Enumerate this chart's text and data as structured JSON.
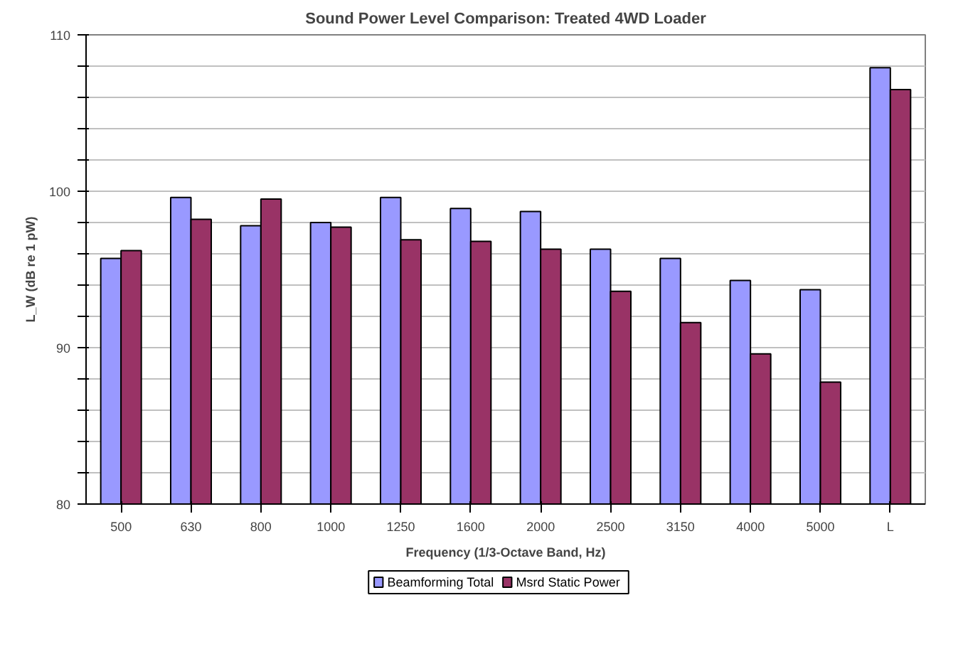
{
  "chart_data": {
    "type": "bar",
    "title": "Sound Power Level Comparison: Treated 4WD Loader",
    "xlabel": "Frequency (1/3-Octave Band, Hz)",
    "ylabel": "L_W (dB re 1 pW)",
    "categories": [
      "500",
      "630",
      "800",
      "1000",
      "1250",
      "1600",
      "2000",
      "2500",
      "3150",
      "4000",
      "5000",
      "L"
    ],
    "series": [
      {
        "name": "Beamforming Total",
        "color": "#9999ff",
        "values": [
          95.7,
          99.6,
          97.8,
          98.0,
          99.6,
          98.9,
          98.7,
          96.3,
          95.7,
          94.3,
          93.7,
          107.9
        ]
      },
      {
        "name": "Msrd Static Power",
        "color": "#993366",
        "values": [
          96.2,
          98.2,
          99.5,
          97.7,
          96.9,
          96.8,
          96.3,
          93.6,
          91.6,
          89.6,
          87.8,
          106.5
        ]
      }
    ],
    "ylim": [
      80,
      110
    ],
    "yticks": [
      80,
      {
        "value": 82,
        "label": null
      },
      {
        "value": 84,
        "label": null
      },
      {
        "value": 86,
        "label": null
      },
      {
        "value": 88,
        "label": null
      },
      90,
      {
        "value": 92,
        "label": null
      },
      {
        "value": 94,
        "label": null
      },
      {
        "value": 96,
        "label": null
      },
      {
        "value": 98,
        "label": null
      },
      100,
      {
        "value": 102,
        "label": null
      },
      {
        "value": 104,
        "label": null
      },
      {
        "value": 106,
        "label": null
      },
      {
        "value": 108,
        "label": null
      },
      110
    ],
    "grid": "y",
    "legend": "bottom"
  }
}
